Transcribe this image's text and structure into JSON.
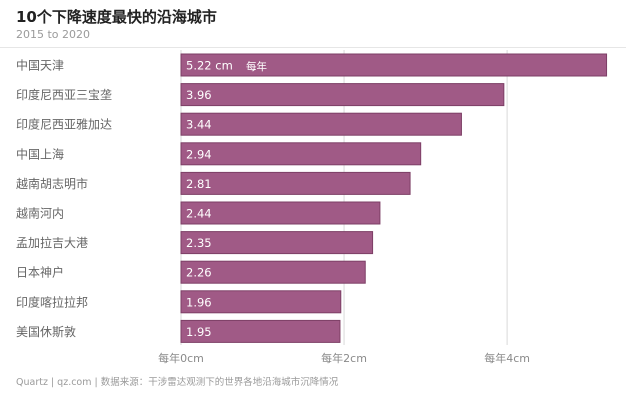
{
  "chart_data": {
    "type": "bar",
    "orientation": "horizontal",
    "title": "10个下降速度最快的沿海城市",
    "subtitle": "2015 to 2020",
    "categories": [
      "中国天津",
      "印度尼西亚三宝垄",
      "印度尼西亚雅加达",
      "中国上海",
      "越南胡志明市",
      "越南河内",
      "孟加拉吉大港",
      "日本神户",
      "印度喀拉拉邦",
      "美国休斯敦"
    ],
    "values": [
      5.22,
      3.96,
      3.44,
      2.94,
      2.81,
      2.44,
      2.35,
      2.26,
      1.96,
      1.95
    ],
    "value_labels": [
      "5.22 cm",
      "3.96",
      "3.44",
      "2.94",
      "2.81",
      "2.44",
      "2.35",
      "2.26",
      "1.96",
      "1.95"
    ],
    "first_bar_note": "每年",
    "x_ticks": [
      0,
      2,
      4
    ],
    "x_tick_labels": [
      "每年0cm",
      "每年2cm",
      "每年4cm"
    ],
    "xlim": [
      0,
      5.25
    ],
    "grid": true,
    "bar_color": "#a05a86",
    "bar_edge_color": "#7d3f66"
  },
  "footer": "Quartz | qz.com | 数据来源：干涉雷达观测下的世界各地沿海城市沉降情况"
}
